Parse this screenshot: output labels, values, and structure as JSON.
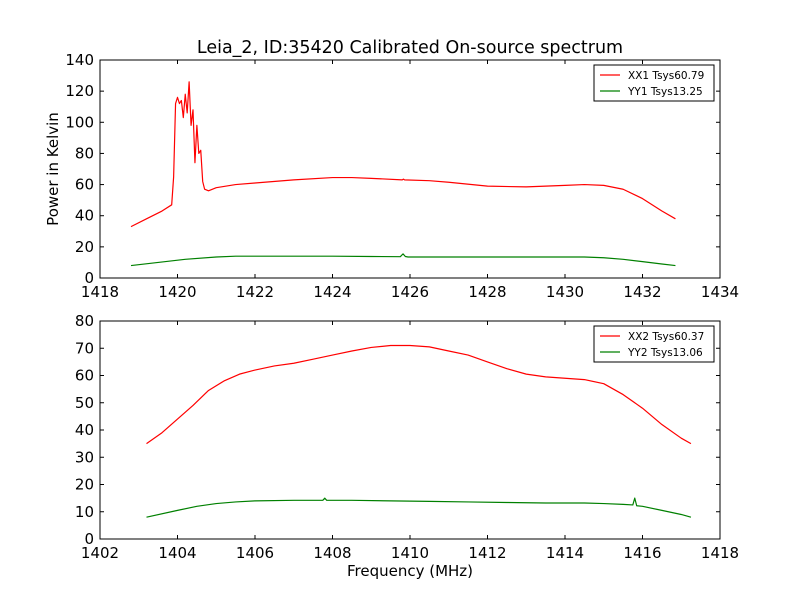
{
  "title": "Leia_2, ID:35420 Calibrated On-source spectrum",
  "chart_data": [
    {
      "type": "line",
      "title": "Leia_2, ID:35420 Calibrated On-source spectrum",
      "xlabel": "",
      "ylabel": "Power in Kelvin",
      "xlim": [
        1418,
        1434
      ],
      "ylim": [
        0,
        140
      ],
      "xticks": [
        1418,
        1420,
        1422,
        1424,
        1426,
        1428,
        1430,
        1432,
        1434
      ],
      "yticks": [
        0,
        20,
        40,
        60,
        80,
        100,
        120,
        140
      ],
      "grid": false,
      "legend_position": "top-right",
      "series": [
        {
          "name": "XX1 Tsys60.79",
          "color": "#ff0000",
          "x": [
            1418.8,
            1419.2,
            1419.6,
            1419.85,
            1419.9,
            1419.95,
            1420.0,
            1420.05,
            1420.1,
            1420.15,
            1420.2,
            1420.25,
            1420.3,
            1420.35,
            1420.4,
            1420.45,
            1420.5,
            1420.55,
            1420.6,
            1420.65,
            1420.7,
            1420.8,
            1421.0,
            1421.5,
            1422.0,
            1423.0,
            1424.0,
            1424.5,
            1425.0,
            1425.8,
            1425.83,
            1425.86,
            1426.5,
            1427.0,
            1428.0,
            1429.0,
            1430.0,
            1430.5,
            1431.0,
            1431.5,
            1432.0,
            1432.5,
            1432.85
          ],
          "values": [
            33,
            38,
            43,
            47,
            65,
            112,
            116,
            112,
            114,
            103,
            118,
            106,
            126,
            98,
            108,
            74,
            98,
            80,
            82,
            62,
            57,
            56,
            58,
            60,
            61,
            63,
            64.5,
            64.5,
            64,
            63,
            63.5,
            63,
            62.5,
            61.5,
            59,
            58.5,
            59.5,
            60,
            59.5,
            57,
            51,
            43,
            38
          ]
        },
        {
          "name": "YY1 Tsys13.25",
          "color": "#008000",
          "x": [
            1418.8,
            1419.5,
            1420.2,
            1421.0,
            1421.5,
            1422.0,
            1423.0,
            1424.0,
            1425.0,
            1425.75,
            1425.82,
            1425.88,
            1425.95,
            1426.5,
            1428.0,
            1429.0,
            1430.0,
            1430.5,
            1431.0,
            1431.5,
            1432.0,
            1432.5,
            1432.85
          ],
          "values": [
            8,
            10,
            12,
            13.5,
            14,
            14,
            14,
            14,
            13.8,
            13.7,
            15.5,
            13.8,
            13.5,
            13.5,
            13.5,
            13.5,
            13.5,
            13.5,
            13,
            12,
            10.5,
            9,
            8
          ]
        }
      ]
    },
    {
      "type": "line",
      "title": "",
      "xlabel": "Frequency (MHz)",
      "ylabel": "",
      "xlim": [
        1402,
        1418
      ],
      "ylim": [
        0,
        80
      ],
      "xticks": [
        1402,
        1404,
        1406,
        1408,
        1410,
        1412,
        1414,
        1416,
        1418
      ],
      "yticks": [
        0,
        10,
        20,
        30,
        40,
        50,
        60,
        70,
        80
      ],
      "grid": false,
      "legend_position": "top-right",
      "series": [
        {
          "name": "XX2 Tsys60.37",
          "color": "#ff0000",
          "x": [
            1403.2,
            1403.6,
            1404.0,
            1404.4,
            1404.8,
            1405.2,
            1405.6,
            1406.0,
            1406.5,
            1407.0,
            1407.5,
            1408.0,
            1408.5,
            1409.0,
            1409.5,
            1410.0,
            1410.5,
            1411.0,
            1411.5,
            1412.0,
            1412.5,
            1413.0,
            1413.5,
            1414.0,
            1414.5,
            1415.0,
            1415.5,
            1416.0,
            1416.5,
            1417.0,
            1417.25
          ],
          "values": [
            35,
            39,
            44,
            49,
            54.5,
            58,
            60.5,
            62,
            63.5,
            64.5,
            66,
            67.5,
            69,
            70.3,
            71,
            71,
            70.5,
            69,
            67.5,
            65,
            62.5,
            60.5,
            59.5,
            59,
            58.5,
            57,
            53,
            48,
            42,
            37,
            35
          ]
        },
        {
          "name": "YY2 Tsys13.06",
          "color": "#008000",
          "x": [
            1403.2,
            1404.0,
            1404.5,
            1405.0,
            1405.5,
            1406.0,
            1407.0,
            1407.75,
            1407.8,
            1407.85,
            1408.5,
            1409.5,
            1410.5,
            1411.5,
            1412.5,
            1413.5,
            1414.5,
            1415.0,
            1415.5,
            1415.75,
            1415.8,
            1415.85,
            1416.0,
            1416.5,
            1417.0,
            1417.25
          ],
          "values": [
            8,
            10.5,
            12,
            13,
            13.6,
            14,
            14.2,
            14.2,
            15,
            14.2,
            14.2,
            14,
            13.8,
            13.6,
            13.4,
            13.2,
            13.2,
            13,
            12.7,
            12.5,
            15,
            12.2,
            12,
            10.5,
            9,
            8
          ]
        }
      ]
    }
  ]
}
